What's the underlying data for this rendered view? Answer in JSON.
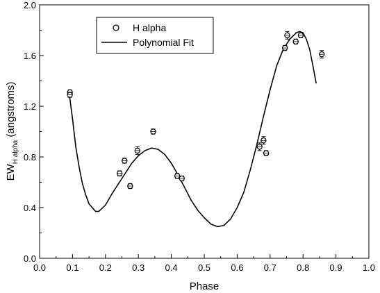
{
  "chart_data": {
    "type": "scatter",
    "title": "",
    "xlabel": "Phase",
    "ylabel": {
      "main": "EW",
      "subscript": "H alpha",
      "suffix": " (angstroms)"
    },
    "xlim": [
      0.0,
      1.0
    ],
    "ylim": [
      0.0,
      2.0
    ],
    "x_ticks": [
      "0.0",
      "0.1",
      "0.2",
      "0.3",
      "0.4",
      "0.5",
      "0.6",
      "0.7",
      "0.8",
      "0.9",
      "1.0"
    ],
    "y_ticks": [
      "0.0",
      "0.4",
      "0.8",
      "1.2",
      "1.6",
      "2.0"
    ],
    "grid": false,
    "legend_position": "top-left",
    "colors": {
      "series": "#000000",
      "background": "#ffffff"
    },
    "series": [
      {
        "name": "H alpha",
        "kind": "scatter-with-error-bars",
        "marker": "open-circle",
        "points": [
          {
            "x": 0.092,
            "y": 1.31,
            "err": 0.02
          },
          {
            "x": 0.092,
            "y": 1.29,
            "err": 0.02
          },
          {
            "x": 0.243,
            "y": 0.67,
            "err": 0.02
          },
          {
            "x": 0.258,
            "y": 0.77,
            "err": 0.02
          },
          {
            "x": 0.275,
            "y": 0.57,
            "err": 0.02
          },
          {
            "x": 0.297,
            "y": 0.85,
            "err": 0.03
          },
          {
            "x": 0.345,
            "y": 1.0,
            "err": 0.02
          },
          {
            "x": 0.418,
            "y": 0.65,
            "err": 0.02
          },
          {
            "x": 0.432,
            "y": 0.63,
            "err": 0.02
          },
          {
            "x": 0.668,
            "y": 0.88,
            "err": 0.03
          },
          {
            "x": 0.68,
            "y": 0.93,
            "err": 0.03
          },
          {
            "x": 0.688,
            "y": 0.83,
            "err": 0.02
          },
          {
            "x": 0.745,
            "y": 1.66,
            "err": 0.02
          },
          {
            "x": 0.752,
            "y": 1.76,
            "err": 0.03
          },
          {
            "x": 0.778,
            "y": 1.71,
            "err": 0.02
          },
          {
            "x": 0.793,
            "y": 1.76,
            "err": 0.02
          },
          {
            "x": 0.857,
            "y": 1.61,
            "err": 0.03
          }
        ]
      },
      {
        "name": "Polynomial Fit",
        "kind": "line",
        "x": [
          0.09,
          0.1,
          0.11,
          0.12,
          0.13,
          0.14,
          0.15,
          0.16,
          0.17,
          0.18,
          0.2,
          0.22,
          0.25,
          0.28,
          0.3,
          0.32,
          0.34,
          0.36,
          0.38,
          0.4,
          0.42,
          0.44,
          0.46,
          0.48,
          0.5,
          0.52,
          0.54,
          0.56,
          0.58,
          0.6,
          0.62,
          0.64,
          0.66,
          0.68,
          0.7,
          0.72,
          0.74,
          0.76,
          0.78,
          0.79,
          0.8,
          0.81,
          0.82,
          0.83,
          0.84
        ],
        "y": [
          1.3,
          1.1,
          0.88,
          0.72,
          0.59,
          0.5,
          0.43,
          0.4,
          0.37,
          0.37,
          0.42,
          0.51,
          0.63,
          0.75,
          0.81,
          0.85,
          0.87,
          0.86,
          0.82,
          0.75,
          0.66,
          0.56,
          0.46,
          0.38,
          0.32,
          0.27,
          0.25,
          0.26,
          0.31,
          0.4,
          0.52,
          0.7,
          0.9,
          1.12,
          1.33,
          1.52,
          1.65,
          1.73,
          1.78,
          1.79,
          1.78,
          1.73,
          1.65,
          1.52,
          1.38
        ]
      }
    ]
  }
}
